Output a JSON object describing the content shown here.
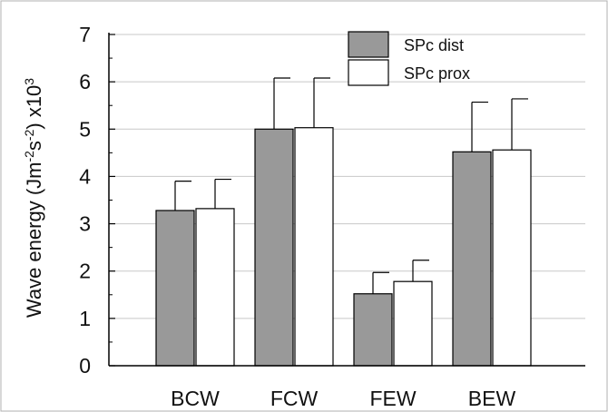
{
  "chart_data": {
    "type": "bar",
    "title": "",
    "xlabel": "",
    "ylabel": {
      "main": "Wave energy (Jm",
      "sup1": "-2",
      "mid": "s",
      "sup2": "-2",
      "rest": ") x10",
      "sup3": "3"
    },
    "categories": [
      "BCW",
      "FCW",
      "FEW",
      "BEW"
    ],
    "series": [
      {
        "name": "SPc dist",
        "values": [
          3.28,
          5.0,
          1.52,
          4.52
        ],
        "errors": [
          0.62,
          1.08,
          0.45,
          1.05
        ]
      },
      {
        "name": "SPc prox",
        "values": [
          3.32,
          5.03,
          1.78,
          4.56
        ],
        "errors": [
          0.62,
          1.05,
          0.45,
          1.08
        ]
      }
    ],
    "ylim": [
      0,
      7
    ],
    "yticks": [
      "0",
      "1",
      "2",
      "3",
      "4",
      "5",
      "6",
      "7"
    ],
    "grid": true,
    "legend_position": "top-right",
    "colors": {
      "series": [
        "#999999",
        "#ffffff"
      ],
      "stroke": "#000000",
      "grid": "#c8c8c8"
    }
  }
}
